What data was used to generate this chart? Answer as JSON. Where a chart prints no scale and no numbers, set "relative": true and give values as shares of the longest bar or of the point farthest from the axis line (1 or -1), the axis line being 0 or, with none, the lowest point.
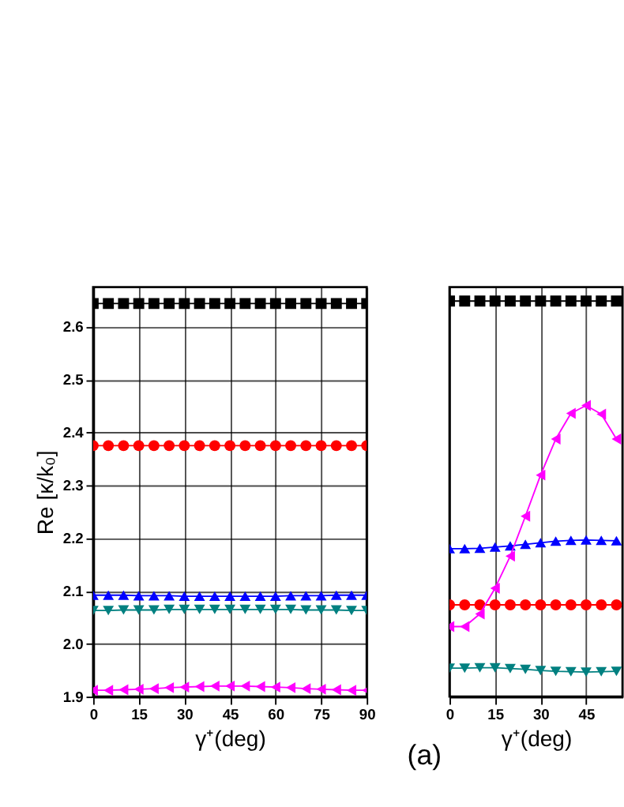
{
  "chart_data": [
    {
      "type": "line",
      "xlabel": "γ⁺(deg)",
      "ylabel": "Re [κ/k₀]",
      "x": [
        0,
        5,
        10,
        15,
        20,
        25,
        30,
        35,
        40,
        45,
        50,
        55,
        60,
        65,
        70,
        75,
        80,
        85,
        90
      ],
      "series": [
        {
          "color": "#000000",
          "marker": "square",
          "values": [
            2.644,
            2.644,
            2.644,
            2.644,
            2.644,
            2.644,
            2.644,
            2.644,
            2.644,
            2.644,
            2.644,
            2.644,
            2.644,
            2.644,
            2.644,
            2.644,
            2.644,
            2.644,
            2.644
          ]
        },
        {
          "color": "#ff0000",
          "marker": "circle",
          "values": [
            2.375,
            2.375,
            2.375,
            2.375,
            2.375,
            2.375,
            2.375,
            2.375,
            2.375,
            2.375,
            2.375,
            2.375,
            2.375,
            2.375,
            2.375,
            2.375,
            2.375,
            2.375,
            2.375
          ]
        },
        {
          "color": "#0000ff",
          "marker": "triangle",
          "values": [
            2.092,
            2.092,
            2.092,
            2.091,
            2.091,
            2.091,
            2.09,
            2.09,
            2.09,
            2.09,
            2.09,
            2.09,
            2.09,
            2.091,
            2.091,
            2.091,
            2.092,
            2.092,
            2.092
          ]
        },
        {
          "color": "#008080",
          "marker": "triangle-down",
          "values": [
            2.063,
            2.063,
            2.064,
            2.064,
            2.064,
            2.065,
            2.065,
            2.065,
            2.065,
            2.065,
            2.065,
            2.065,
            2.065,
            2.065,
            2.064,
            2.064,
            2.064,
            2.063,
            2.063
          ]
        },
        {
          "color": "#ff00ff",
          "marker": "triangle-left",
          "values": [
            1.912,
            1.912,
            1.913,
            1.914,
            1.915,
            1.917,
            1.918,
            1.919,
            1.92,
            1.92,
            1.92,
            1.919,
            1.918,
            1.917,
            1.915,
            1.914,
            1.913,
            1.912,
            1.912
          ]
        }
      ],
      "xlim": [
        0,
        90
      ],
      "xticks": [
        0,
        15,
        30,
        45,
        60,
        75,
        90
      ],
      "ylim": [
        1.9,
        2.675
      ],
      "yticks": [
        1.9,
        {
          "value": 2,
          "label": "2.0"
        },
        2.1,
        2.2,
        2.3,
        2.4,
        2.5,
        2.6
      ],
      "grid": true,
      "line_style": "solid"
    },
    {
      "type": "line",
      "xlabel": "γ⁺(deg)",
      "annotations": [
        "(a)"
      ],
      "relative": true,
      "x": [
        0,
        5,
        10,
        15,
        20,
        25,
        30,
        35,
        40,
        45,
        50,
        55
      ],
      "series": [
        {
          "color": "#000000",
          "marker": "square",
          "values": [
            1,
            1,
            1,
            1,
            1,
            1,
            1,
            1,
            1,
            1,
            1,
            1
          ]
        },
        {
          "color": "#ff0000",
          "marker": "circle",
          "values": [
            0.232,
            0.232,
            0.232,
            0.232,
            0.232,
            0.232,
            0.232,
            0.232,
            0.232,
            0.232,
            0.232,
            0.232
          ]
        },
        {
          "color": "#0000ff",
          "marker": "triangle",
          "values": [
            0.374,
            0.374,
            0.375,
            0.378,
            0.381,
            0.385,
            0.389,
            0.393,
            0.395,
            0.396,
            0.395,
            0.394
          ]
        },
        {
          "color": "#008080",
          "marker": "triangle-down",
          "values": [
            0.072,
            0.072,
            0.073,
            0.073,
            0.071,
            0.069,
            0.066,
            0.064,
            0.063,
            0.062,
            0.063,
            0.064
          ]
        },
        {
          "color": "#ff00ff",
          "marker": "triangle-left",
          "values": [
            0.177,
            0.177,
            0.209,
            0.274,
            0.355,
            0.456,
            0.56,
            0.651,
            0.716,
            0.736,
            0.714,
            0.651
          ]
        }
      ],
      "xlim": [
        0,
        57
      ],
      "xticks": [
        0,
        15,
        30,
        45
      ],
      "tick_labels": "x",
      "grid": "x",
      "line_style": "solid"
    }
  ]
}
